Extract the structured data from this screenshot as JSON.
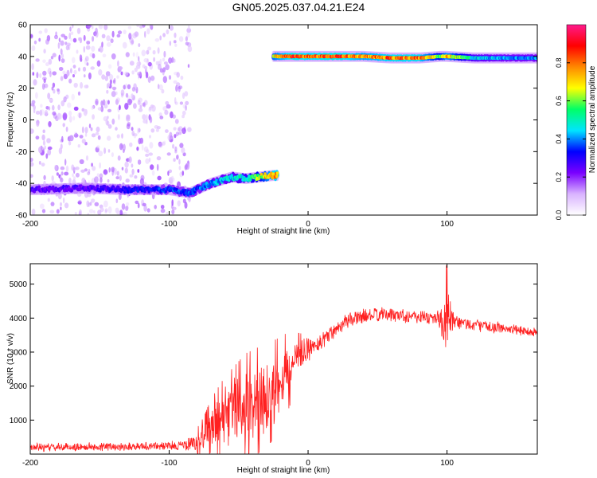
{
  "title": "GN05.2025.037.04.21.E24",
  "chart_data": [
    {
      "type": "heatmap",
      "xlabel": "Height of straight line (km)",
      "ylabel": "Frequency (Hz)",
      "xlim": [
        -200,
        165
      ],
      "ylim": [
        -60,
        60
      ],
      "x_ticks": [
        -200,
        -100,
        0,
        100
      ],
      "x_tick_labels": [
        "-200",
        "-100",
        "0",
        "100"
      ],
      "y_ticks": [
        -60,
        -40,
        -20,
        0,
        20,
        40,
        60
      ],
      "y_tick_labels": [
        "-60",
        "-40",
        "-20",
        "0",
        "20",
        "40",
        "60"
      ],
      "colorbar": {
        "label": "Normalized spectral amplitude",
        "range": [
          0,
          1
        ],
        "ticks": [
          0.0,
          0.2,
          0.4,
          0.6,
          0.8
        ],
        "tick_labels": [
          "0.0",
          "0.2",
          "0.4",
          "0.6",
          "0.8"
        ],
        "colormap": [
          "#ffffff",
          "#d9b3ff",
          "#7a00ff",
          "#0000ff",
          "#00e5ff",
          "#00ff66",
          "#ffff00",
          "#ff8800",
          "#ff0000",
          "#ff1a8c"
        ]
      },
      "noise_region": {
        "x": [
          -200,
          -85
        ],
        "y": [
          -60,
          60
        ],
        "amplitude": 0.15
      },
      "ridges": [
        {
          "x": [
            -200,
            -160,
            -130,
            -100,
            -85,
            -70,
            -55,
            -45,
            -35,
            -25,
            -22
          ],
          "y": [
            -44,
            -43,
            -44,
            -44,
            -46,
            -40,
            -36,
            -37,
            -36,
            -35,
            -35
          ],
          "amplitude": [
            0.25,
            0.25,
            0.3,
            0.35,
            0.35,
            0.4,
            0.45,
            0.5,
            0.6,
            0.8,
            0.8
          ]
        },
        {
          "x": [
            -25,
            -10,
            0,
            20,
            40,
            60,
            80,
            95,
            100,
            120,
            140,
            165
          ],
          "y": [
            40,
            40,
            40,
            40,
            40,
            39,
            39,
            40,
            40,
            39,
            39,
            39
          ],
          "amplitude": [
            0.7,
            0.85,
            0.8,
            0.85,
            0.75,
            0.8,
            0.8,
            0.6,
            0.75,
            0.45,
            0.4,
            0.4
          ]
        }
      ]
    },
    {
      "type": "line",
      "xlabel": "Height of straight line (km)",
      "ylabel": "SNR (10 * v/v)",
      "xlim": [
        -200,
        165
      ],
      "ylim": [
        0,
        5600
      ],
      "x_ticks": [
        -200,
        -100,
        0,
        100
      ],
      "x_tick_labels": [
        "-200",
        "-100",
        "0",
        "100"
      ],
      "y_ticks": [
        1000,
        2000,
        3000,
        4000,
        5000
      ],
      "y_tick_labels": [
        "1000",
        "2000",
        "3000",
        "4000",
        "5000"
      ],
      "grid": false,
      "series": [
        {
          "color": "#ff2020",
          "x": [
            -200,
            -180,
            -160,
            -140,
            -120,
            -100,
            -90,
            -80,
            -75,
            -70,
            -65,
            -60,
            -55,
            -50,
            -45,
            -40,
            -35,
            -30,
            -25,
            -20,
            -15,
            -10,
            -5,
            0,
            5,
            10,
            15,
            20,
            25,
            30,
            40,
            50,
            60,
            70,
            80,
            90,
            95,
            98,
            100,
            102,
            105,
            110,
            120,
            130,
            140,
            150,
            160,
            165
          ],
          "y": [
            200,
            200,
            210,
            220,
            230,
            240,
            260,
            300,
            450,
            700,
            900,
            1100,
            1200,
            1300,
            1400,
            1500,
            1600,
            1700,
            1900,
            2150,
            2400,
            2650,
            2900,
            3050,
            3200,
            3350,
            3500,
            3700,
            3850,
            3950,
            4050,
            4100,
            4100,
            4080,
            4050,
            4000,
            3950,
            3900,
            3900,
            3800,
            3850,
            3850,
            3800,
            3750,
            3700,
            3650,
            3600,
            3580
          ],
          "noise": [
            140,
            140,
            140,
            140,
            140,
            150,
            180,
            350,
            500,
            700,
            800,
            900,
            1000,
            1100,
            1200,
            1200,
            1200,
            1200,
            1100,
            1000,
            900,
            700,
            500,
            400,
            350,
            320,
            300,
            280,
            260,
            250,
            250,
            240,
            240,
            240,
            240,
            260,
            350,
            900,
            1500,
            900,
            350,
            250,
            200,
            190,
            180,
            180,
            180,
            180
          ]
        }
      ]
    }
  ]
}
